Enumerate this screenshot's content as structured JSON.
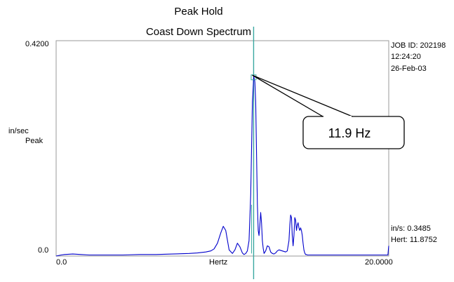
{
  "chart_data": {
    "type": "line",
    "title": "Peak Hold",
    "subtitle": "Coast Down Spectrum",
    "xlabel": "Hertz",
    "ylabel_line1": "in/sec",
    "ylabel_line2": "Peak",
    "x_tick_min": "0.0",
    "x_tick_max": "20.0000",
    "y_tick_min": "0.0",
    "y_tick_max": "0.4200",
    "xlim": [
      0,
      20
    ],
    "ylim": [
      0,
      0.42
    ],
    "grid": false,
    "info": {
      "job_id": "JOB ID: 202198",
      "time": "12:24:20",
      "date": "26-Feb-03"
    },
    "cursor": {
      "x": 11.8752,
      "y": 0.3485,
      "readout_amp": "in/s: 0.3485",
      "readout_freq": "Hert: 11.8752"
    },
    "annotation": {
      "text": "11.9 Hz",
      "x": 11.88,
      "y": 0.35
    },
    "colors": {
      "line": "#0000cc",
      "cursor": "#3aa8a0",
      "frame": "#999999"
    },
    "series": [
      {
        "x": [
          0,
          0.3,
          0.5,
          1.0,
          1.5,
          2,
          3,
          4,
          5,
          6,
          7,
          8,
          8.5,
          9.0,
          9.3,
          9.5,
          9.7,
          9.9,
          10.05,
          10.2,
          10.4,
          10.6,
          10.75,
          10.9,
          11.05,
          11.2,
          11.3,
          11.4,
          11.5,
          11.6,
          11.7,
          11.8,
          11.88,
          11.95,
          12.0,
          12.05,
          12.1,
          12.15,
          12.2,
          12.25,
          12.3,
          12.35,
          12.4,
          12.45,
          12.5,
          12.6,
          12.7,
          12.8,
          12.9,
          13.0,
          13.1,
          13.2,
          13.3,
          13.4,
          13.6,
          13.8,
          13.9,
          14.0,
          14.05,
          14.1,
          14.15,
          14.2,
          14.25,
          14.3,
          14.35,
          14.4,
          14.45,
          14.5,
          14.55,
          14.6,
          14.65,
          14.7,
          14.75,
          14.8,
          14.85,
          14.9,
          14.95,
          15.0,
          15.05,
          15.1,
          15.15,
          15.2,
          15.3,
          15.4,
          15.5,
          15.6,
          15.8,
          16,
          16.5,
          17,
          18,
          19,
          19.5,
          19.9,
          19.95,
          20.0
        ],
        "values": [
          0.0,
          0.002,
          0.003,
          0.004,
          0.003,
          0.002,
          0.002,
          0.002,
          0.003,
          0.003,
          0.004,
          0.005,
          0.006,
          0.008,
          0.01,
          0.014,
          0.025,
          0.045,
          0.058,
          0.05,
          0.012,
          0.005,
          0.012,
          0.025,
          0.018,
          0.006,
          0.003,
          0.005,
          0.01,
          0.03,
          0.12,
          0.3,
          0.35,
          0.34,
          0.3,
          0.2,
          0.1,
          0.05,
          0.04,
          0.06,
          0.085,
          0.065,
          0.03,
          0.015,
          0.005,
          0.01,
          0.02,
          0.018,
          0.008,
          0.005,
          0.004,
          0.006,
          0.01,
          0.012,
          0.01,
          0.008,
          0.01,
          0.03,
          0.06,
          0.08,
          0.075,
          0.04,
          0.02,
          0.04,
          0.075,
          0.07,
          0.05,
          0.06,
          0.065,
          0.055,
          0.05,
          0.055,
          0.05,
          0.04,
          0.025,
          0.012,
          0.006,
          0.003,
          0.003,
          0.002,
          0.002,
          0.002,
          0.002,
          0.002,
          0.002,
          0.002,
          0.002,
          0.002,
          0.002,
          0.002,
          0.002,
          0.002,
          0.002,
          0.002,
          0.002,
          0.02
        ]
      }
    ]
  }
}
